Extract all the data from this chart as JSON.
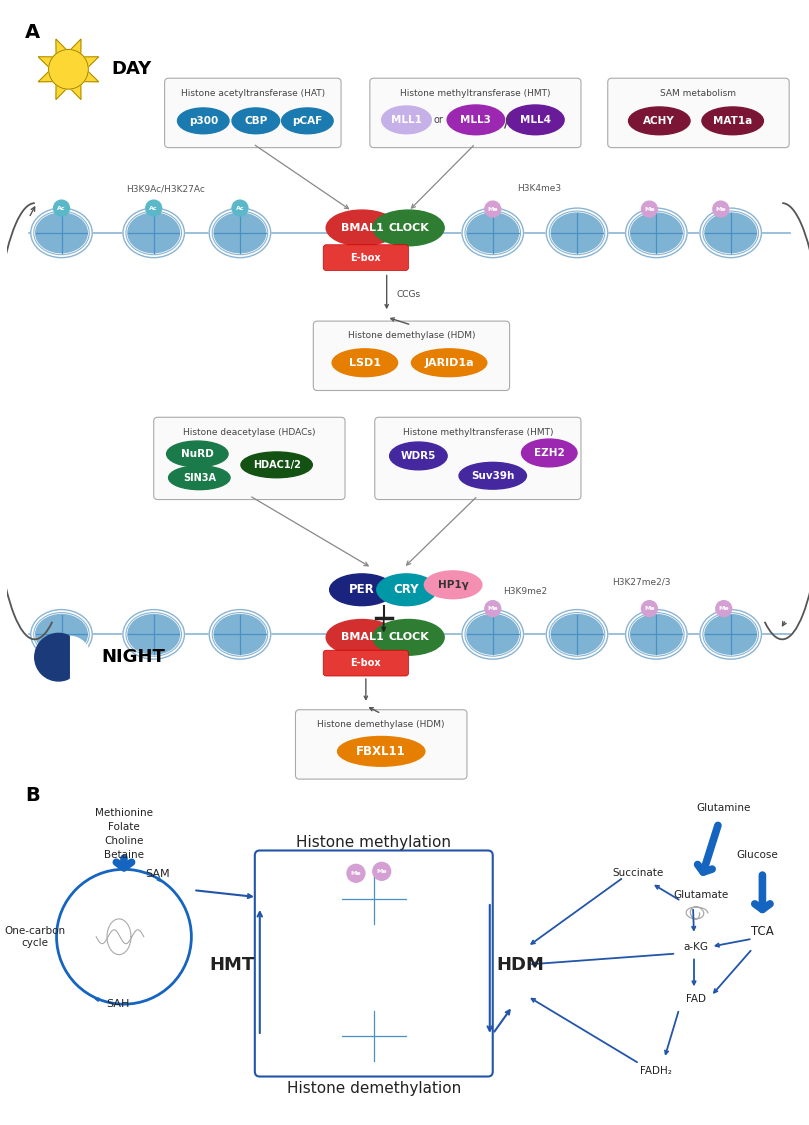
{
  "bg_color": "#ffffff",
  "panel_A_label": "A",
  "panel_B_label": "B",
  "day_text": "DAY",
  "night_text": "NIGHT",
  "hat_box_title": "Histone acetyltransferase (HAT)",
  "hmt_box1_title": "Histone methyltransferase (HMT)",
  "sam_box_title": "SAM metabolism",
  "hdm_box1_title": "Histone demethylase (HDM)",
  "hdac_box_title": "Histone deacetylase (HDACs)",
  "hmt_box2_title": "Histone methyltransferase (HMT)",
  "hdm_box2_title": "Histone demethylase (HDM)",
  "h3k9ac_label": "H3K9Ac/H3K27Ac",
  "h3k4me3_label": "H3K4me3",
  "h3k9me2_label": "H3K9me2",
  "h3k27me_label": "H3K27me2/3",
  "ccgs_label": "CCGs",
  "hmt_label": "HMT",
  "hdm_label": "HDM",
  "histone_meth_title": "Histone methylation",
  "histone_demeth_title": "Histone demethylation",
  "one_carbon_label": "One-carbon\ncycle",
  "sam_label": "SAM",
  "sah_label": "SAH",
  "methionine_label": "Methionine\nFolate\nCholine\nBetaine",
  "succinate_label": "Succinate",
  "glutamate_label": "Glutamate",
  "glutamine_label": "Glutamine",
  "glucose_label": "Glucose",
  "akg_label": "a-KG",
  "tca_label": "TCA",
  "fad_label": "FAD",
  "fadh2_label": "FADH₂",
  "color_p300": "#1b7ab0",
  "color_cbp": "#1b7ab0",
  "color_pcaf": "#1b7ab0",
  "color_mll1": "#c5b0e8",
  "color_mll3": "#9c27b0",
  "color_mll4": "#6a1b9a",
  "color_achy": "#7b1535",
  "color_mat1a": "#7b1535",
  "color_bmal1": "#d32f2f",
  "color_clock": "#2e7d32",
  "color_ebox": "#e53935",
  "color_per": "#1a237e",
  "color_cry": "#0097a7",
  "color_hp1y": "#f48fb1",
  "color_lsd1": "#e67e00",
  "color_jarid1a": "#e67e00",
  "color_fbxl11": "#e67e00",
  "color_nurd": "#1b7a4a",
  "color_sin3a": "#1b7a4a",
  "color_hdac12": "#145214",
  "color_wdr5": "#4527a0",
  "color_suv39h": "#4527a0",
  "color_ezh2": "#9c27b0",
  "color_arrow": "#555555",
  "color_blue_arrow": "#1565c0",
  "color_nucleus_fill": "#7fb3d3",
  "color_nucleus_dark": "#4a90c4",
  "color_me_ball": "#d4a0d4",
  "color_ac_ball": "#5bb8c8",
  "color_sun_body": "#fdd835",
  "color_moon": "#1a3a7a",
  "color_box_border": "#aaaaaa"
}
